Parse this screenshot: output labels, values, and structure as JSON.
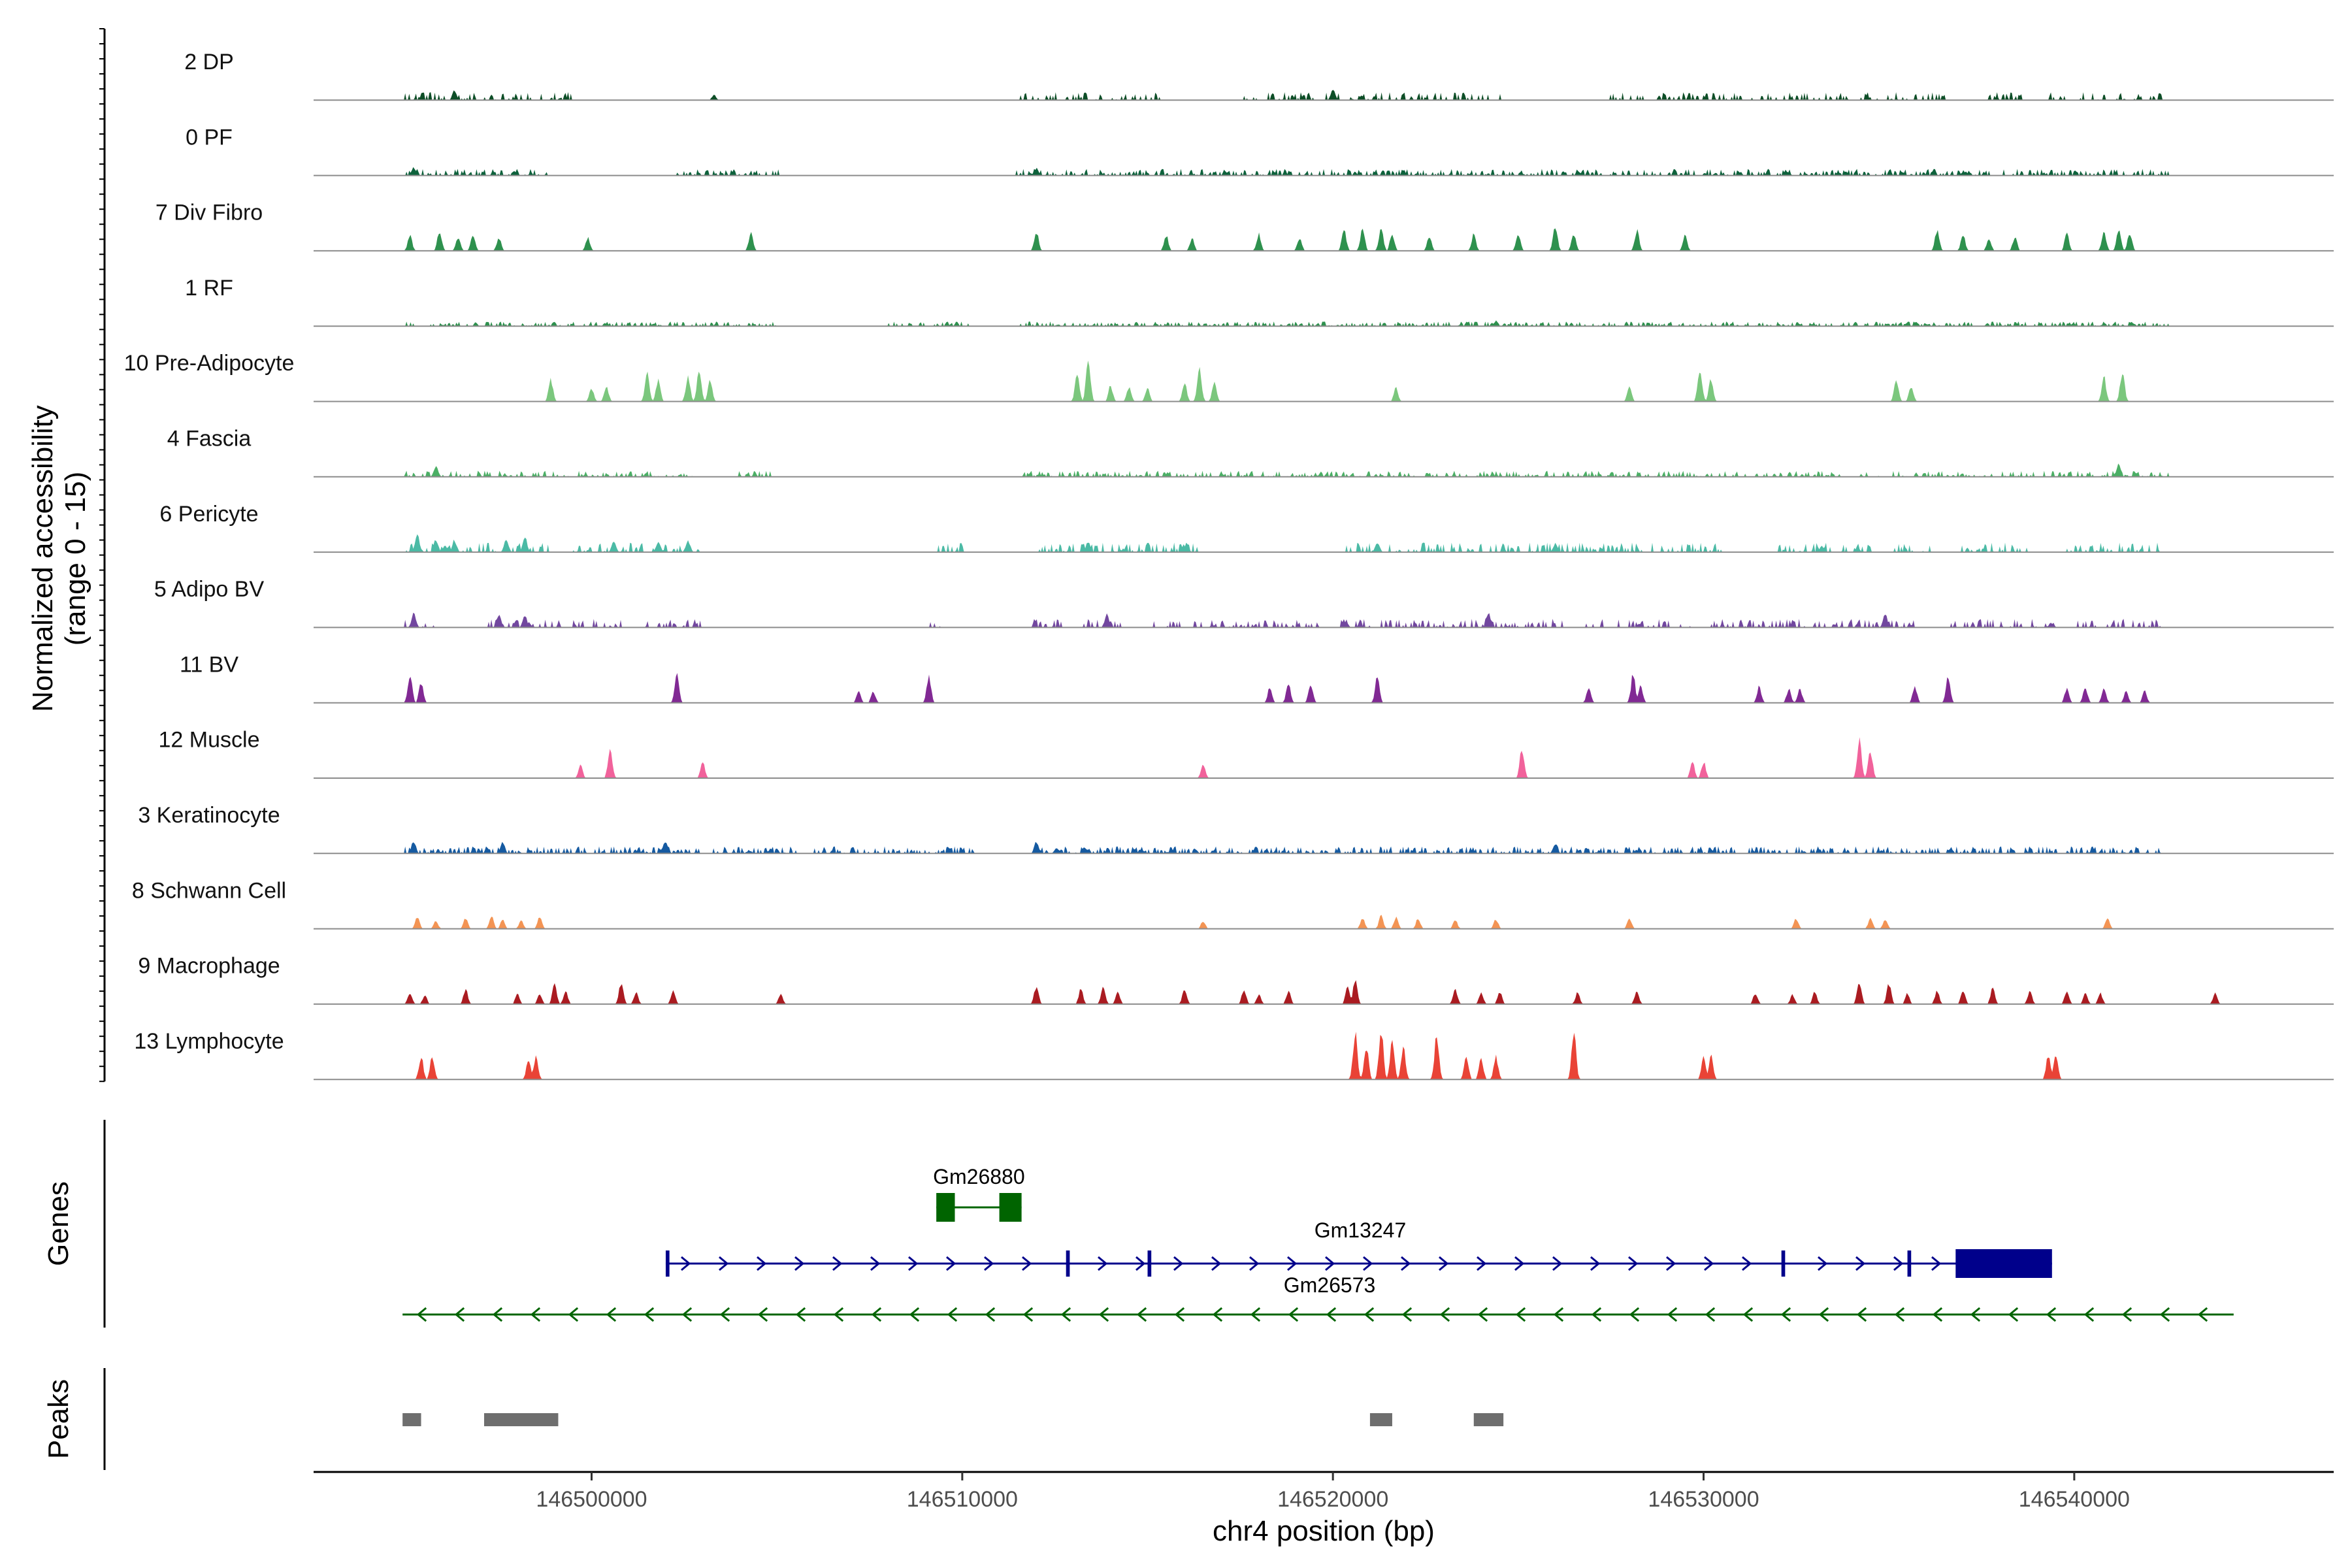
{
  "chart_data": {
    "type": "coverage-track",
    "ylabel_line1": "Normalized accessibility",
    "ylabel_line2": "(range 0 - 15)",
    "y_range": [
      0,
      15
    ],
    "xlabel": "chr4 position (bp)",
    "x_range": [
      146492500,
      146547000
    ],
    "x_ticks": [
      146500000,
      146510000,
      146520000,
      146530000,
      146540000
    ],
    "x_tick_labels": [
      "146500000",
      "146510000",
      "146520000",
      "146530000",
      "146540000"
    ],
    "tracks": [
      {
        "name": "2 DP",
        "color": "#00441b",
        "style": "dense",
        "density": 0.35,
        "amp": 1.5,
        "regions": [
          [
            146495000,
            146499500
          ],
          [
            146511500,
            146515500
          ],
          [
            146517500,
            146524500
          ],
          [
            146527500,
            146536500
          ],
          [
            146537500,
            146542500
          ]
        ],
        "peaks": [
          [
            146496300,
            2.2
          ],
          [
            146503300,
            1.2
          ],
          [
            146520000,
            2.4
          ]
        ]
      },
      {
        "name": "0 PF",
        "color": "#005a32",
        "style": "dense",
        "density": 0.55,
        "amp": 1.2,
        "regions": [
          [
            146495000,
            146498800
          ],
          [
            146502300,
            146505000
          ],
          [
            146511500,
            146542500
          ]
        ],
        "peaks": [
          [
            146495200,
            1.8
          ],
          [
            146512000,
            1.6
          ]
        ]
      },
      {
        "name": "7 Div Fibro",
        "color": "#238b45",
        "style": "spiky",
        "peaks": [
          [
            146495100,
            3.5
          ],
          [
            146495900,
            4.5
          ],
          [
            146496400,
            3.2
          ],
          [
            146496800,
            3.4
          ],
          [
            146497500,
            3.0
          ],
          [
            146499900,
            3.0
          ],
          [
            146504300,
            4.2
          ],
          [
            146512000,
            4.5
          ],
          [
            146515500,
            3.6
          ],
          [
            146516200,
            2.8
          ],
          [
            146518000,
            3.8
          ],
          [
            146519100,
            3.0
          ],
          [
            146520300,
            5.0
          ],
          [
            146520800,
            5.2
          ],
          [
            146521300,
            5.4
          ],
          [
            146521600,
            4.0
          ],
          [
            146522600,
            3.4
          ],
          [
            146523800,
            3.8
          ],
          [
            146525000,
            3.8
          ],
          [
            146526000,
            5.5
          ],
          [
            146526500,
            4.0
          ],
          [
            146528200,
            4.8
          ],
          [
            146529500,
            3.4
          ],
          [
            146536300,
            4.8
          ],
          [
            146537000,
            3.6
          ],
          [
            146537700,
            3.0
          ],
          [
            146538400,
            3.2
          ],
          [
            146539800,
            4.0
          ],
          [
            146540800,
            4.6
          ],
          [
            146541200,
            5.0
          ],
          [
            146541500,
            4.2
          ]
        ]
      },
      {
        "name": "1 RF",
        "color": "#238b45",
        "style": "dense",
        "density": 0.5,
        "amp": 0.8,
        "regions": [
          [
            146495000,
            146505000
          ],
          [
            146508000,
            146510200
          ],
          [
            146511500,
            146542500
          ]
        ],
        "peaks": [
          [
            146524400,
            1.2
          ]
        ]
      },
      {
        "name": "10 Pre-Adipocyte",
        "color": "#74c476",
        "style": "spiky",
        "peaks": [
          [
            146498900,
            5.0
          ],
          [
            146500000,
            3.0
          ],
          [
            146500400,
            3.4
          ],
          [
            146501500,
            7.0
          ],
          [
            146501800,
            5.0
          ],
          [
            146502600,
            5.6
          ],
          [
            146502900,
            7.2
          ],
          [
            146503200,
            4.8
          ],
          [
            146513100,
            6.2
          ],
          [
            146513400,
            9.8
          ],
          [
            146514000,
            3.6
          ],
          [
            146514500,
            3.4
          ],
          [
            146515000,
            3.0
          ],
          [
            146516000,
            4.2
          ],
          [
            146516400,
            7.6
          ],
          [
            146516800,
            4.4
          ],
          [
            146521700,
            3.2
          ],
          [
            146528000,
            3.4
          ],
          [
            146529900,
            8.0
          ],
          [
            146530200,
            5.0
          ],
          [
            146535200,
            5.0
          ],
          [
            146535600,
            3.6
          ],
          [
            146540800,
            5.6
          ],
          [
            146541300,
            7.0
          ]
        ]
      },
      {
        "name": "4 Fascia",
        "color": "#41ab5d",
        "style": "dense",
        "density": 0.45,
        "amp": 1.1,
        "regions": [
          [
            146495000,
            146502800
          ],
          [
            146504000,
            146505000
          ],
          [
            146511500,
            146542500
          ]
        ],
        "peaks": [
          [
            146495800,
            2.5
          ],
          [
            146541200,
            3.0
          ]
        ]
      },
      {
        "name": "6 Pericyte",
        "color": "#41b6a0",
        "style": "dense",
        "density": 0.5,
        "amp": 1.8,
        "regions": [
          [
            146495000,
            146498800
          ],
          [
            146499500,
            146502900
          ],
          [
            146509300,
            146510100
          ],
          [
            146512100,
            146516300
          ],
          [
            146520400,
            146530500
          ],
          [
            146532000,
            146534500
          ],
          [
            146535000,
            146536200
          ],
          [
            146537000,
            146538800
          ],
          [
            146539800,
            146542300
          ]
        ],
        "peaks": [
          [
            146495300,
            3.8
          ],
          [
            146495800,
            3.0
          ],
          [
            146496300,
            2.8
          ],
          [
            146497700,
            2.8
          ],
          [
            146498200,
            3.6
          ],
          [
            146500600,
            2.5
          ],
          [
            146501800,
            2.4
          ],
          [
            146502600,
            2.8
          ],
          [
            146513400,
            2.4
          ],
          [
            146521200,
            2.2
          ],
          [
            146526000,
            2.0
          ]
        ]
      },
      {
        "name": "5 Adipo BV",
        "color": "#6a3d9a",
        "style": "dense",
        "density": 0.45,
        "amp": 1.6,
        "regions": [
          [
            146495000,
            146495700
          ],
          [
            146497200,
            146500800
          ],
          [
            146501400,
            146502900
          ],
          [
            146509000,
            146509400
          ],
          [
            146511800,
            146512700
          ],
          [
            146513300,
            146514300
          ],
          [
            146515200,
            146519600
          ],
          [
            146520200,
            146526300
          ],
          [
            146526800,
            146535700
          ],
          [
            146536600,
            146539500
          ],
          [
            146540100,
            146542300
          ]
        ],
        "peaks": [
          [
            146495200,
            3.2
          ],
          [
            146497500,
            3.0
          ],
          [
            146498200,
            2.8
          ],
          [
            146513900,
            3.0
          ],
          [
            146524200,
            3.4
          ],
          [
            146534900,
            3.2
          ]
        ]
      },
      {
        "name": "11 BV",
        "color": "#7a1e8e",
        "style": "spiky",
        "peaks": [
          [
            146495100,
            6.5
          ],
          [
            146495400,
            4.5
          ],
          [
            146502300,
            6.2
          ],
          [
            146507200,
            2.6
          ],
          [
            146507600,
            2.6
          ],
          [
            146509100,
            6.0
          ],
          [
            146518300,
            3.6
          ],
          [
            146518800,
            4.6
          ],
          [
            146519400,
            4.4
          ],
          [
            146521200,
            6.0
          ],
          [
            146526900,
            3.6
          ],
          [
            146528100,
            6.5
          ],
          [
            146528300,
            4.0
          ],
          [
            146531500,
            3.8
          ],
          [
            146532300,
            3.2
          ],
          [
            146532600,
            3.2
          ],
          [
            146535700,
            3.8
          ],
          [
            146536600,
            6.0
          ],
          [
            146539800,
            3.2
          ],
          [
            146540300,
            3.6
          ],
          [
            146540800,
            3.4
          ],
          [
            146541400,
            2.6
          ],
          [
            146541900,
            2.6
          ]
        ]
      },
      {
        "name": "12 Muscle",
        "color": "#f05a96",
        "style": "spiky",
        "peaks": [
          [
            146499700,
            3.0
          ],
          [
            146500500,
            7.4
          ],
          [
            146503000,
            3.8
          ],
          [
            146516500,
            3.4
          ],
          [
            146525100,
            6.8
          ],
          [
            146529700,
            3.8
          ],
          [
            146530000,
            3.8
          ],
          [
            146534200,
            8.6
          ],
          [
            146534500,
            6.4
          ]
        ]
      },
      {
        "name": "3 Keratinocyte",
        "color": "#08519c",
        "style": "dense",
        "density": 0.55,
        "amp": 1.3,
        "regions": [
          [
            146495000,
            146502900
          ],
          [
            146503200,
            146505500
          ],
          [
            146506000,
            146510400
          ],
          [
            146512000,
            146521600
          ],
          [
            146521800,
            146530800
          ],
          [
            146531200,
            146542300
          ]
        ],
        "peaks": [
          [
            146495200,
            2.8
          ],
          [
            146497600,
            2.6
          ],
          [
            146502000,
            3.0
          ],
          [
            146512000,
            2.6
          ],
          [
            146526000,
            2.2
          ]
        ]
      },
      {
        "name": "8 Schwann Cell",
        "color": "#f28e4b",
        "style": "spiky",
        "peaks": [
          [
            146495300,
            2.8
          ],
          [
            146495800,
            1.8
          ],
          [
            146496600,
            2.4
          ],
          [
            146497300,
            3.0
          ],
          [
            146497600,
            2.2
          ],
          [
            146498100,
            2.0
          ],
          [
            146498600,
            2.6
          ],
          [
            146516500,
            1.8
          ],
          [
            146520800,
            2.6
          ],
          [
            146521300,
            3.0
          ],
          [
            146521700,
            2.6
          ],
          [
            146522300,
            2.4
          ],
          [
            146523300,
            2.0
          ],
          [
            146524400,
            2.2
          ],
          [
            146528000,
            2.4
          ],
          [
            146532500,
            2.4
          ],
          [
            146534500,
            2.4
          ],
          [
            146534900,
            2.2
          ],
          [
            146540900,
            2.6
          ]
        ]
      },
      {
        "name": "9 Macrophage",
        "color": "#a50f15",
        "style": "spiky",
        "peaks": [
          [
            146495100,
            2.6
          ],
          [
            146495500,
            2.0
          ],
          [
            146496600,
            3.4
          ],
          [
            146498000,
            2.2
          ],
          [
            146498600,
            2.4
          ],
          [
            146499000,
            4.6
          ],
          [
            146499300,
            3.0
          ],
          [
            146500800,
            5.0
          ],
          [
            146501200,
            2.6
          ],
          [
            146502200,
            3.4
          ],
          [
            146505100,
            2.2
          ],
          [
            146512000,
            4.2
          ],
          [
            146513200,
            3.4
          ],
          [
            146513800,
            3.8
          ],
          [
            146514200,
            2.8
          ],
          [
            146516000,
            3.6
          ],
          [
            146517600,
            3.4
          ],
          [
            146518000,
            2.2
          ],
          [
            146518800,
            3.0
          ],
          [
            146520400,
            4.0
          ],
          [
            146520600,
            5.4
          ],
          [
            146523300,
            3.6
          ],
          [
            146524000,
            2.6
          ],
          [
            146524500,
            2.8
          ],
          [
            146526600,
            2.6
          ],
          [
            146528200,
            3.0
          ],
          [
            146531400,
            2.6
          ],
          [
            146532400,
            2.2
          ],
          [
            146533000,
            2.8
          ],
          [
            146534200,
            5.4
          ],
          [
            146535000,
            4.8
          ],
          [
            146535500,
            2.4
          ],
          [
            146536300,
            3.0
          ],
          [
            146537000,
            3.2
          ],
          [
            146537800,
            3.6
          ],
          [
            146538800,
            3.0
          ],
          [
            146539800,
            3.0
          ],
          [
            146540300,
            2.6
          ],
          [
            146540700,
            2.6
          ],
          [
            146543800,
            2.4
          ]
        ]
      },
      {
        "name": "13 Lymphocyte",
        "color": "#e8392b",
        "style": "spiky",
        "peaks": [
          [
            146495400,
            5.2
          ],
          [
            146495700,
            5.0
          ],
          [
            146498300,
            5.0
          ],
          [
            146498500,
            5.0
          ],
          [
            146520600,
            10.5
          ],
          [
            146520900,
            8.0
          ],
          [
            146521300,
            11.8
          ],
          [
            146521600,
            9.0
          ],
          [
            146521900,
            7.5
          ],
          [
            146522800,
            10.0
          ],
          [
            146523600,
            5.4
          ],
          [
            146524000,
            5.0
          ],
          [
            146524400,
            5.2
          ],
          [
            146526500,
            11.0
          ],
          [
            146530000,
            5.4
          ],
          [
            146530200,
            5.4
          ],
          [
            146539300,
            5.6
          ],
          [
            146539500,
            5.8
          ]
        ]
      }
    ],
    "genes": [
      {
        "name": "Gm26880",
        "color": "#006400",
        "strand": "-",
        "start": 146509300,
        "end": 146511600,
        "exons": [
          [
            146509300,
            146509800
          ],
          [
            146511000,
            146511600
          ]
        ],
        "row": 0
      },
      {
        "name": "Gm13247",
        "color": "#00008b",
        "strand": "+",
        "start": 146502000,
        "end": 146539400,
        "exons": [
          [
            146502000,
            146502100
          ],
          [
            146512800,
            146512900
          ],
          [
            146515000,
            146515100
          ],
          [
            146532100,
            146532200
          ],
          [
            146535500,
            146535600
          ],
          [
            146536800,
            146539400
          ]
        ],
        "row": 1
      },
      {
        "name": "Gm26573",
        "color": "#006400",
        "strand": "-",
        "start": 146494900,
        "end": 146544300,
        "exons": [],
        "row": 2
      }
    ],
    "peak_regions": [
      [
        146494900,
        146495400
      ],
      [
        146497100,
        146499100
      ],
      [
        146521000,
        146521600
      ],
      [
        146523800,
        146524600
      ]
    ],
    "panel_labels": {
      "genes": "Genes",
      "peaks": "Peaks"
    }
  }
}
